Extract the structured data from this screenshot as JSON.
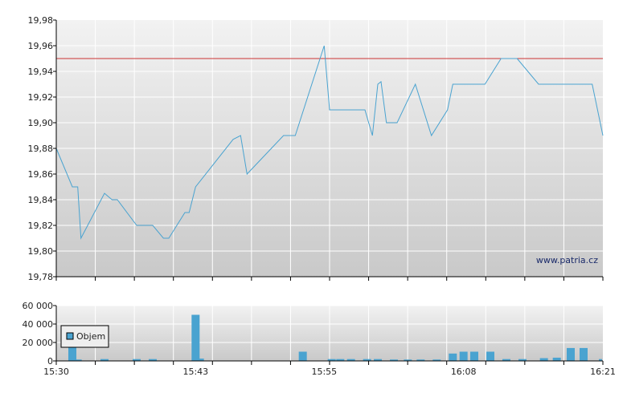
{
  "colors": {
    "line": "#4aa3d0",
    "bar": "#4aa3d0",
    "bar_stroke": "#2f86b5",
    "ref_line": "#cc3333",
    "grid": "#ffffff",
    "axis": "#000000"
  },
  "watermark": "www.patria.cz",
  "chart_data": [
    {
      "type": "line",
      "grid": true,
      "ylim": [
        19.78,
        19.98
      ],
      "y_ticks": [
        "19,78",
        "19,80",
        "19,82",
        "19,84",
        "19,86",
        "19,88",
        "19,90",
        "19,92",
        "19,94",
        "19,96",
        "19,98"
      ],
      "y_tick_values": [
        19.78,
        19.8,
        19.82,
        19.84,
        19.86,
        19.88,
        19.9,
        19.92,
        19.94,
        19.96,
        19.98
      ],
      "reference_line": 19.95,
      "xlim": [
        "15:30",
        "16:21"
      ],
      "series": [
        {
          "x": [
            "15:30",
            "15:31.5",
            "15:32",
            "15:32.3",
            "15:34.5",
            "15:35.2",
            "15:35.7",
            "15:37.5",
            "15:39",
            "15:40",
            "15:40.5",
            "15:42",
            "15:42.4",
            "15:43",
            "15:46.5",
            "15:47.2",
            "15:47.8",
            "15:51.2",
            "15:52.3",
            "15:55",
            "15:55.5",
            "15:58.8",
            "15:59.5",
            "16:00",
            "16:00.3",
            "16:00.8",
            "16:01.8",
            "16:03.5",
            "16:05",
            "16:06.5",
            "16:07",
            "16:10",
            "16:11.5",
            "16:13",
            "16:15",
            "16:20",
            "16:21"
          ],
          "y": [
            19.88,
            19.85,
            19.85,
            19.81,
            19.845,
            19.84,
            19.84,
            19.82,
            19.82,
            19.81,
            19.81,
            19.83,
            19.83,
            19.85,
            19.887,
            19.89,
            19.86,
            19.89,
            19.89,
            19.96,
            19.91,
            19.91,
            19.89,
            19.93,
            19.932,
            19.9,
            19.9,
            19.93,
            19.89,
            19.91,
            19.93,
            19.93,
            19.95,
            19.95,
            19.93,
            19.93,
            19.89
          ]
        }
      ]
    },
    {
      "type": "bar",
      "grid": true,
      "ylim": [
        0,
        60000
      ],
      "y_ticks": [
        "0",
        "20 000",
        "40 000",
        "60 000"
      ],
      "y_tick_values": [
        0,
        20000,
        40000,
        60000
      ],
      "x_ticks": [
        "15:30",
        "15:43",
        "15:55",
        "16:08",
        "16:21"
      ],
      "x_tick_values": [
        "15:30",
        "15:43",
        "15:55",
        "16:08",
        "16:21"
      ],
      "xlim": [
        "15:30",
        "16:21"
      ],
      "legend": {
        "position": "top-left",
        "label": "Objem"
      },
      "series": [
        {
          "name": "Objem",
          "x": [
            "15:31.5",
            "15:32",
            "15:34.5",
            "15:37.5",
            "15:39",
            "15:43",
            "15:43.4",
            "15:53",
            "15:55.7",
            "15:56.5",
            "15:57.5",
            "15:59",
            "16:00",
            "16:01.5",
            "16:02.8",
            "16:04",
            "16:05.5",
            "16:07",
            "16:08",
            "16:09",
            "16:10.5",
            "16:12",
            "16:13.5",
            "16:15.5",
            "16:16.7",
            "16:18",
            "16:19.2",
            "16:21"
          ],
          "values": [
            24000,
            1500,
            2000,
            2000,
            2000,
            50000,
            2500,
            10000,
            2000,
            2000,
            2000,
            2000,
            2000,
            1500,
            1500,
            1500,
            1500,
            8000,
            10000,
            10000,
            10000,
            2000,
            2000,
            3000,
            3500,
            14000,
            14000,
            2000
          ]
        }
      ]
    }
  ]
}
